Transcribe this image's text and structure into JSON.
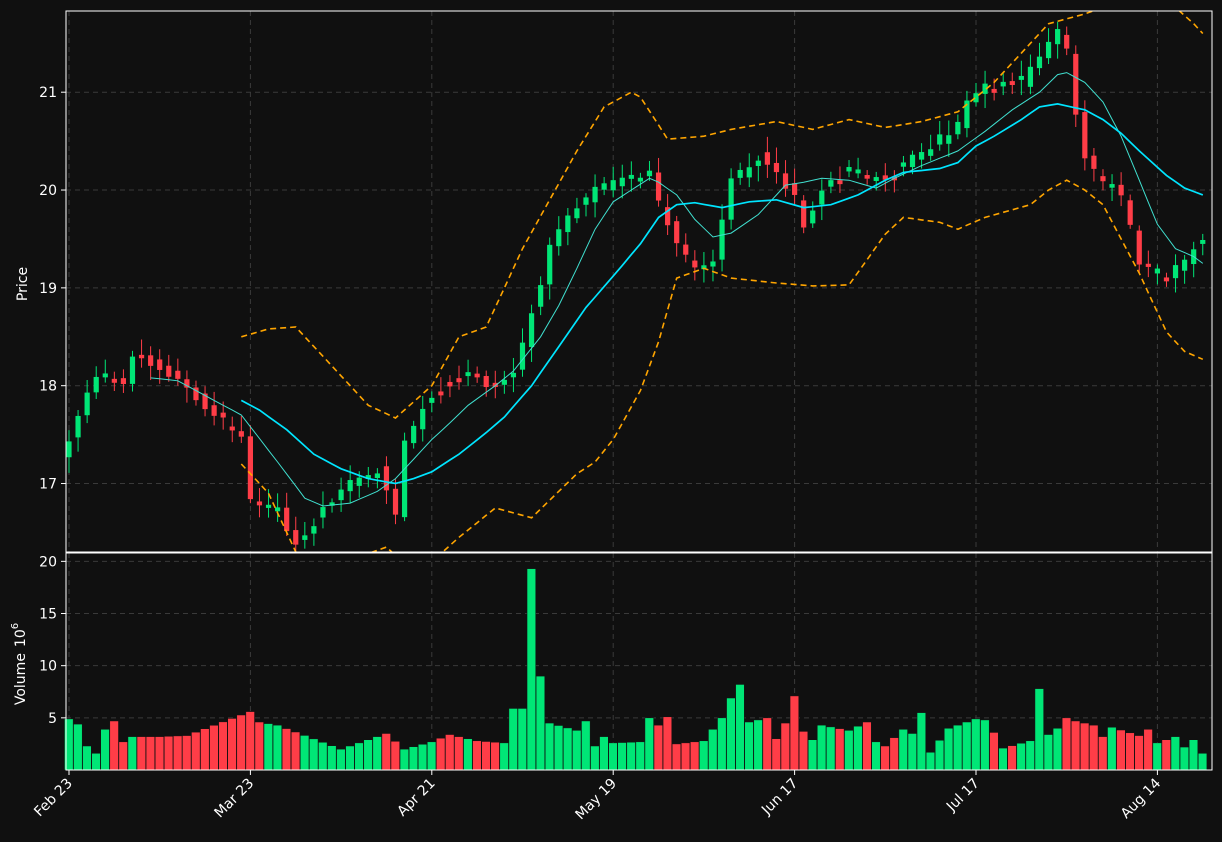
{
  "chart_data": {
    "type": "candlestick",
    "title": "",
    "panels": {
      "price": {
        "ylabel": "Price",
        "ylim": [
          16.3,
          21.83
        ],
        "yticks": [
          17,
          18,
          19,
          20,
          21
        ]
      },
      "volume": {
        "ylabel": "Volume",
        "ylabel_exponent": "10",
        "ylabel_power": "6",
        "ylim": [
          0,
          20.8
        ],
        "yticks": [
          5,
          10,
          15,
          20
        ]
      }
    },
    "x_ticks": [
      {
        "label": "Feb 23",
        "index": 0
      },
      {
        "label": "Mar 23",
        "index": 20
      },
      {
        "label": "Apr 21",
        "index": 40
      },
      {
        "label": "May 19",
        "index": 60
      },
      {
        "label": "Jun 17",
        "index": 80
      },
      {
        "label": "Jul 17",
        "index": 100
      },
      {
        "label": "Aug 14",
        "index": 120
      }
    ],
    "series_styles": {
      "up_color": "#00e676",
      "down_color": "#ff3d47",
      "ma_short_color": "#40e0d0",
      "ma_long_color": "#00e5ff",
      "bollinger_color": "#ffa500",
      "background": "#101010",
      "grid_color": "#3a3a3a"
    },
    "ohlc_keypoints": [
      [
        0,
        17.45
      ],
      [
        3,
        18.12
      ],
      [
        6,
        17.98
      ],
      [
        7,
        18.33
      ],
      [
        12,
        18.08
      ],
      [
        16,
        17.72
      ],
      [
        19,
        17.48
      ],
      [
        20,
        16.8
      ],
      [
        23,
        16.73
      ],
      [
        25,
        16.38
      ],
      [
        28,
        16.73
      ],
      [
        31,
        17.02
      ],
      [
        34,
        17.12
      ],
      [
        36,
        16.7
      ],
      [
        37,
        17.4
      ],
      [
        39,
        17.8
      ],
      [
        41,
        17.98
      ],
      [
        44,
        18.1
      ],
      [
        47,
        18.0
      ],
      [
        49,
        18.15
      ],
      [
        51,
        18.75
      ],
      [
        53,
        19.4
      ],
      [
        55,
        19.7
      ],
      [
        58,
        20.0
      ],
      [
        62,
        20.12
      ],
      [
        64,
        20.2
      ],
      [
        65,
        19.88
      ],
      [
        67,
        19.45
      ],
      [
        69,
        19.2
      ],
      [
        71,
        19.3
      ],
      [
        73,
        20.1
      ],
      [
        76,
        20.35
      ],
      [
        80,
        19.95
      ],
      [
        81,
        19.6
      ],
      [
        83,
        20.0
      ],
      [
        86,
        20.22
      ],
      [
        89,
        20.1
      ],
      [
        91,
        20.2
      ],
      [
        94,
        20.4
      ],
      [
        98,
        20.65
      ],
      [
        99,
        20.9
      ],
      [
        101,
        21.05
      ],
      [
        105,
        21.1
      ],
      [
        108,
        21.55
      ],
      [
        109,
        21.62
      ],
      [
        110,
        21.4
      ],
      [
        111,
        20.8
      ],
      [
        112,
        20.3
      ],
      [
        114,
        20.08
      ],
      [
        116,
        19.95
      ],
      [
        117,
        19.6
      ],
      [
        118,
        19.25
      ],
      [
        121,
        19.12
      ],
      [
        123,
        19.25
      ],
      [
        124,
        19.4
      ],
      [
        125,
        19.48
      ]
    ],
    "bollinger_upper_keypoints": [
      [
        19,
        18.5
      ],
      [
        22,
        18.58
      ],
      [
        25,
        18.6
      ],
      [
        28,
        18.3
      ],
      [
        33,
        17.8
      ],
      [
        36,
        17.67
      ],
      [
        40,
        18.0
      ],
      [
        43,
        18.5
      ],
      [
        46,
        18.6
      ],
      [
        50,
        19.4
      ],
      [
        53,
        19.9
      ],
      [
        56,
        20.4
      ],
      [
        59,
        20.85
      ],
      [
        62,
        21.0
      ],
      [
        63,
        20.95
      ],
      [
        66,
        20.52
      ],
      [
        70,
        20.55
      ],
      [
        73,
        20.62
      ],
      [
        78,
        20.7
      ],
      [
        82,
        20.62
      ],
      [
        86,
        20.72
      ],
      [
        90,
        20.64
      ],
      [
        94,
        20.7
      ],
      [
        98,
        20.8
      ],
      [
        102,
        21.1
      ],
      [
        106,
        21.5
      ],
      [
        108,
        21.7
      ],
      [
        112,
        21.8
      ],
      [
        115,
        21.9
      ],
      [
        119,
        22.0
      ],
      [
        121,
        21.95
      ],
      [
        124,
        21.7
      ],
      [
        125,
        21.6
      ]
    ],
    "bollinger_lower_keypoints": [
      [
        19,
        17.2
      ],
      [
        22,
        16.9
      ],
      [
        25,
        16.3
      ],
      [
        28,
        16.1
      ],
      [
        31,
        16.22
      ],
      [
        35,
        16.35
      ],
      [
        38,
        16.1
      ],
      [
        40,
        16.2
      ],
      [
        43,
        16.45
      ],
      [
        47,
        16.75
      ],
      [
        51,
        16.65
      ],
      [
        56,
        17.1
      ],
      [
        58,
        17.22
      ],
      [
        60,
        17.45
      ],
      [
        63,
        17.95
      ],
      [
        65,
        18.45
      ],
      [
        67,
        19.1
      ],
      [
        70,
        19.2
      ],
      [
        73,
        19.1
      ],
      [
        78,
        19.05
      ],
      [
        82,
        19.02
      ],
      [
        86,
        19.03
      ],
      [
        90,
        19.55
      ],
      [
        92,
        19.72
      ],
      [
        96,
        19.67
      ],
      [
        98,
        19.6
      ],
      [
        101,
        19.72
      ],
      [
        106,
        19.85
      ],
      [
        108,
        20.0
      ],
      [
        110,
        20.1
      ],
      [
        112,
        20.0
      ],
      [
        114,
        19.85
      ],
      [
        116,
        19.5
      ],
      [
        118,
        19.15
      ],
      [
        121,
        18.55
      ],
      [
        123,
        18.35
      ],
      [
        125,
        18.27
      ]
    ],
    "ma_short_keypoints": [
      [
        9,
        18.08
      ],
      [
        12,
        18.05
      ],
      [
        16,
        17.85
      ],
      [
        19,
        17.7
      ],
      [
        23,
        17.22
      ],
      [
        26,
        16.85
      ],
      [
        28,
        16.77
      ],
      [
        31,
        16.8
      ],
      [
        34,
        16.92
      ],
      [
        36,
        17.05
      ],
      [
        38,
        17.25
      ],
      [
        40,
        17.45
      ],
      [
        42,
        17.62
      ],
      [
        44,
        17.8
      ],
      [
        47,
        18.0
      ],
      [
        49,
        18.15
      ],
      [
        52,
        18.5
      ],
      [
        54,
        18.82
      ],
      [
        56,
        19.2
      ],
      [
        58,
        19.6
      ],
      [
        60,
        19.88
      ],
      [
        62,
        20.0
      ],
      [
        64,
        20.12
      ],
      [
        65,
        20.08
      ],
      [
        67,
        19.95
      ],
      [
        69,
        19.7
      ],
      [
        71,
        19.52
      ],
      [
        73,
        19.56
      ],
      [
        76,
        19.75
      ],
      [
        79,
        20.05
      ],
      [
        81,
        20.08
      ],
      [
        83,
        20.12
      ],
      [
        86,
        20.1
      ],
      [
        89,
        20.02
      ],
      [
        91,
        20.12
      ],
      [
        94,
        20.25
      ],
      [
        98,
        20.4
      ],
      [
        101,
        20.6
      ],
      [
        104,
        20.82
      ],
      [
        107,
        21.0
      ],
      [
        109,
        21.18
      ],
      [
        110,
        21.2
      ],
      [
        112,
        21.1
      ],
      [
        114,
        20.9
      ],
      [
        116,
        20.55
      ],
      [
        118,
        20.1
      ],
      [
        120,
        19.65
      ],
      [
        122,
        19.4
      ],
      [
        124,
        19.32
      ],
      [
        125,
        19.25
      ]
    ],
    "ma_long_keypoints": [
      [
        19,
        17.85
      ],
      [
        21,
        17.75
      ],
      [
        24,
        17.55
      ],
      [
        27,
        17.3
      ],
      [
        30,
        17.15
      ],
      [
        33,
        17.05
      ],
      [
        36,
        17.0
      ],
      [
        38,
        17.05
      ],
      [
        40,
        17.12
      ],
      [
        43,
        17.3
      ],
      [
        46,
        17.52
      ],
      [
        48,
        17.68
      ],
      [
        51,
        18.0
      ],
      [
        54,
        18.4
      ],
      [
        57,
        18.8
      ],
      [
        60,
        19.12
      ],
      [
        63,
        19.45
      ],
      [
        65,
        19.72
      ],
      [
        67,
        19.85
      ],
      [
        69,
        19.87
      ],
      [
        72,
        19.82
      ],
      [
        75,
        19.88
      ],
      [
        78,
        19.9
      ],
      [
        81,
        19.82
      ],
      [
        84,
        19.85
      ],
      [
        87,
        19.95
      ],
      [
        90,
        20.1
      ],
      [
        92,
        20.18
      ],
      [
        96,
        20.22
      ],
      [
        98,
        20.28
      ],
      [
        100,
        20.45
      ],
      [
        102,
        20.55
      ],
      [
        105,
        20.72
      ],
      [
        107,
        20.85
      ],
      [
        109,
        20.88
      ],
      [
        112,
        20.82
      ],
      [
        114,
        20.72
      ],
      [
        116,
        20.58
      ],
      [
        118,
        20.4
      ],
      [
        121,
        20.15
      ],
      [
        123,
        20.02
      ],
      [
        125,
        19.95
      ]
    ],
    "volume_keypoints": [
      [
        0,
        4.9
      ],
      [
        1,
        4.4
      ],
      [
        2,
        2.3
      ],
      [
        3,
        1.6
      ],
      [
        4,
        3.9
      ],
      [
        5,
        4.7
      ],
      [
        6,
        2.7
      ],
      [
        7,
        3.2
      ],
      [
        10,
        3.2
      ],
      [
        13,
        3.3
      ],
      [
        20,
        5.6
      ],
      [
        21,
        4.6
      ],
      [
        23,
        4.3
      ],
      [
        30,
        2.0
      ],
      [
        35,
        3.5
      ],
      [
        37,
        2.0
      ],
      [
        40,
        2.7
      ],
      [
        42,
        3.4
      ],
      [
        45,
        2.8
      ],
      [
        48,
        2.6
      ],
      [
        49,
        5.9
      ],
      [
        50,
        5.9
      ],
      [
        51,
        19.3
      ],
      [
        52,
        9.0
      ],
      [
        53,
        4.5
      ],
      [
        56,
        3.8
      ],
      [
        57,
        4.7
      ],
      [
        58,
        2.3
      ],
      [
        59,
        3.2
      ],
      [
        60,
        2.6
      ],
      [
        63,
        2.7
      ],
      [
        64,
        5.0
      ],
      [
        65,
        4.3
      ],
      [
        66,
        5.1
      ],
      [
        67,
        2.5
      ],
      [
        70,
        2.8
      ],
      [
        72,
        5.0
      ],
      [
        73,
        6.9
      ],
      [
        74,
        8.2
      ],
      [
        75,
        4.6
      ],
      [
        76,
        4.8
      ],
      [
        77,
        5.0
      ],
      [
        78,
        3.0
      ],
      [
        79,
        4.5
      ],
      [
        80,
        7.1
      ],
      [
        81,
        3.7
      ],
      [
        82,
        2.9
      ],
      [
        83,
        4.3
      ],
      [
        86,
        3.8
      ],
      [
        88,
        4.6
      ],
      [
        89,
        2.7
      ],
      [
        90,
        2.3
      ],
      [
        92,
        3.9
      ],
      [
        93,
        3.5
      ],
      [
        94,
        5.5
      ],
      [
        95,
        1.7
      ],
      [
        97,
        4.0
      ],
      [
        100,
        4.9
      ],
      [
        101,
        4.8
      ],
      [
        102,
        3.6
      ],
      [
        103,
        2.1
      ],
      [
        106,
        2.8
      ],
      [
        107,
        7.8
      ],
      [
        108,
        3.4
      ],
      [
        109,
        4.0
      ],
      [
        110,
        5.0
      ],
      [
        111,
        4.7
      ],
      [
        113,
        4.3
      ],
      [
        114,
        3.2
      ],
      [
        115,
        4.1
      ],
      [
        118,
        3.3
      ],
      [
        119,
        3.9
      ],
      [
        120,
        2.6
      ],
      [
        122,
        3.2
      ],
      [
        123,
        2.2
      ],
      [
        124,
        2.9
      ],
      [
        125,
        1.6
      ]
    ],
    "bar_count": 126
  }
}
